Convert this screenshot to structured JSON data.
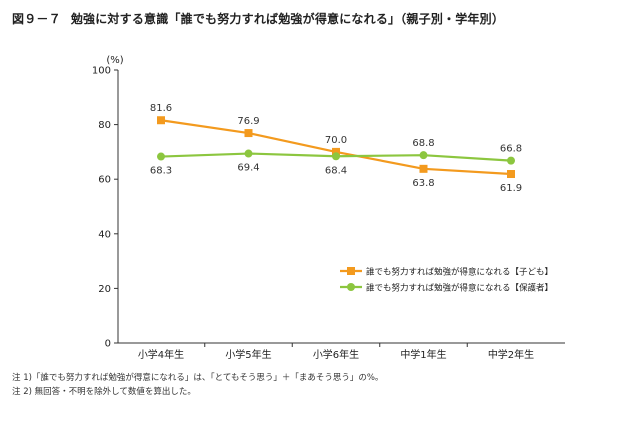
{
  "figure": {
    "number": "図９－７",
    "title": "勉強に対する意識「誰でも努力すれば勉強が得意になれる」（親子別・学年別）"
  },
  "chart_data": {
    "type": "line",
    "unit_label": "(%)",
    "categories": [
      "小学4年生",
      "小学5年生",
      "小学6年生",
      "中学1年生",
      "中学2年生"
    ],
    "ylim": [
      0,
      100
    ],
    "yticks": [
      0,
      20,
      40,
      60,
      80,
      100
    ],
    "grid": false,
    "legend_position": "center-right",
    "series": [
      {
        "name": "誰でも努力すれば勉強が得意になれる【子ども】",
        "color": "#f39a1e",
        "marker": "square",
        "values": [
          81.6,
          76.9,
          70.0,
          63.8,
          61.9
        ],
        "labels": [
          "81.6",
          "76.9",
          "70.0",
          "63.8",
          "61.9"
        ],
        "label_positions": [
          "above",
          "above",
          "above",
          "below",
          "below"
        ]
      },
      {
        "name": "誰でも努力すれば勉強が得意になれる【保護者】",
        "color": "#8cc63f",
        "marker": "circle",
        "values": [
          68.3,
          69.4,
          68.4,
          68.8,
          66.8
        ],
        "labels": [
          "68.3",
          "69.4",
          "68.4",
          "68.8",
          "66.8"
        ],
        "label_positions": [
          "below",
          "below",
          "below",
          "above",
          "above"
        ]
      }
    ]
  },
  "notes": [
    "注 1)「誰でも努力すれば勉強が得意になれる」は、「とてもそう思う」＋「まあそう思う」の%。",
    "注 2) 無回答・不明を除外して数値を算出した。"
  ]
}
